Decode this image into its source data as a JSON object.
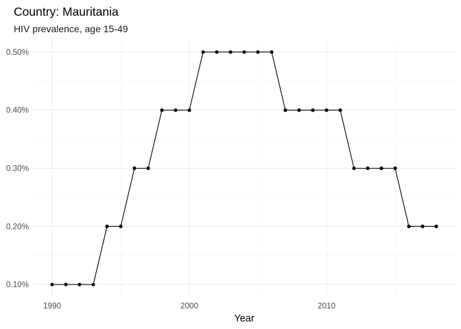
{
  "chart_data": {
    "type": "line",
    "title": "Country: Mauritania",
    "subtitle": "HIV prevalence, age 15-49",
    "xlabel": "Year",
    "ylabel": "",
    "x": [
      1990,
      1991,
      1992,
      1993,
      1994,
      1995,
      1996,
      1997,
      1998,
      1999,
      2000,
      2001,
      2002,
      2003,
      2004,
      2005,
      2006,
      2007,
      2008,
      2009,
      2010,
      2011,
      2012,
      2013,
      2014,
      2015,
      2016,
      2017,
      2018
    ],
    "series": [
      {
        "values": [
          0.1,
          0.1,
          0.1,
          0.1,
          0.2,
          0.2,
          0.3,
          0.3,
          0.4,
          0.4,
          0.4,
          0.5,
          0.5,
          0.5,
          0.5,
          0.5,
          0.5,
          0.4,
          0.4,
          0.4,
          0.4,
          0.4,
          0.3,
          0.3,
          0.3,
          0.3,
          0.2,
          0.2,
          0.2
        ],
        "color": "#000000"
      }
    ],
    "x_ticks": [
      1990,
      2000,
      2010
    ],
    "x_tick_labels": [
      "1990",
      "2000",
      "2010"
    ],
    "y_ticks": [
      0.1,
      0.2,
      0.3,
      0.4,
      0.5
    ],
    "y_tick_labels": [
      "0.10%",
      "0.20%",
      "0.30%",
      "0.40%",
      "0.50%"
    ],
    "xlim": [
      1988.6,
      2019.4
    ],
    "ylim": [
      0.08,
      0.52
    ],
    "grid": true,
    "legend": "none"
  }
}
